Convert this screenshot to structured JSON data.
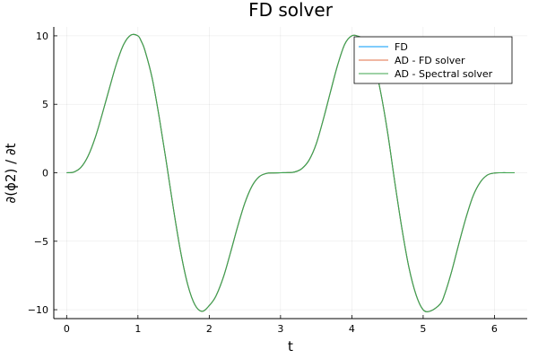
{
  "chart_data": {
    "type": "line",
    "title": "FD solver",
    "xlabel": "t",
    "ylabel": "∂(ϕ2) / ∂t",
    "xlim": [
      -0.18,
      6.46
    ],
    "ylim": [
      -10.65,
      10.65
    ],
    "xticks": [
      0,
      1,
      2,
      3,
      4,
      5,
      6
    ],
    "xtick_labels": [
      "0",
      "1",
      "2",
      "3",
      "4",
      "5",
      "6"
    ],
    "yticks": [
      -10,
      -5,
      0,
      5,
      10
    ],
    "ytick_labels": [
      "−10",
      "−5",
      "0",
      "5",
      "10"
    ],
    "grid": true,
    "legend_position": "top-right",
    "x": [
      0.0,
      0.1,
      0.2,
      0.3,
      0.4,
      0.5,
      0.6,
      0.7,
      0.8,
      0.9,
      1.0,
      1.047,
      1.1,
      1.2,
      1.3,
      1.4,
      1.5,
      1.6,
      1.7,
      1.8,
      1.9,
      2.0,
      2.094,
      2.2,
      2.3,
      2.4,
      2.5,
      2.6,
      2.7,
      2.8,
      2.9,
      3.0,
      3.1,
      3.2,
      3.3,
      3.4,
      3.5,
      3.6,
      3.7,
      3.8,
      3.9,
      4.0,
      4.1,
      4.189,
      4.3,
      4.4,
      4.5,
      4.6,
      4.7,
      4.8,
      4.9,
      5.0,
      5.1,
      5.236,
      5.3,
      5.4,
      5.5,
      5.6,
      5.7,
      5.8,
      5.9,
      6.0,
      6.1,
      6.2,
      6.283
    ],
    "series": [
      {
        "name": "FD",
        "color": "#009af9",
        "values": [
          0.0,
          0.05,
          0.39,
          1.21,
          2.55,
          4.3,
          6.17,
          7.98,
          9.37,
          10.05,
          10.0,
          9.6,
          8.9,
          6.9,
          4.0,
          0.72,
          -2.7,
          -5.8,
          -8.2,
          -9.65,
          -10.12,
          -9.7,
          -9.0,
          -7.6,
          -5.8,
          -3.9,
          -2.2,
          -0.97,
          -0.29,
          -0.05,
          -0.01,
          0.0,
          0.01,
          0.06,
          0.31,
          0.92,
          2.1,
          3.9,
          5.9,
          7.85,
          9.38,
          10.0,
          9.95,
          9.6,
          8.3,
          6.0,
          3.0,
          -0.6,
          -4.0,
          -6.9,
          -8.9,
          -10.0,
          -10.1,
          -9.6,
          -8.9,
          -7.2,
          -5.2,
          -3.3,
          -1.7,
          -0.7,
          -0.17,
          -0.02,
          0.0,
          0.0,
          0.0
        ]
      },
      {
        "name": "AD - FD solver",
        "color": "#e26f46",
        "values": [
          0.0,
          0.05,
          0.39,
          1.21,
          2.55,
          4.3,
          6.17,
          7.98,
          9.37,
          10.05,
          10.0,
          9.6,
          8.9,
          6.9,
          4.0,
          0.72,
          -2.7,
          -5.8,
          -8.2,
          -9.65,
          -10.12,
          -9.7,
          -9.0,
          -7.6,
          -5.8,
          -3.9,
          -2.2,
          -0.97,
          -0.29,
          -0.05,
          -0.01,
          0.0,
          0.01,
          0.06,
          0.31,
          0.92,
          2.1,
          3.9,
          5.9,
          7.85,
          9.38,
          10.0,
          9.95,
          9.6,
          8.3,
          6.0,
          3.0,
          -0.6,
          -4.0,
          -6.9,
          -8.9,
          -10.0,
          -10.1,
          -9.6,
          -8.9,
          -7.2,
          -5.2,
          -3.3,
          -1.7,
          -0.7,
          -0.17,
          -0.02,
          0.0,
          0.0,
          0.0
        ]
      },
      {
        "name": "AD - Spectral solver",
        "color": "#3da44d",
        "values": [
          0.0,
          0.05,
          0.39,
          1.21,
          2.55,
          4.3,
          6.17,
          7.98,
          9.37,
          10.05,
          10.0,
          9.6,
          8.9,
          6.9,
          4.0,
          0.72,
          -2.7,
          -5.8,
          -8.2,
          -9.65,
          -10.12,
          -9.7,
          -9.0,
          -7.6,
          -5.8,
          -3.9,
          -2.2,
          -0.97,
          -0.29,
          -0.05,
          -0.01,
          0.0,
          0.01,
          0.06,
          0.31,
          0.92,
          2.1,
          3.9,
          5.9,
          7.85,
          9.38,
          10.0,
          9.95,
          9.6,
          8.3,
          6.0,
          3.0,
          -0.6,
          -4.0,
          -6.9,
          -8.9,
          -10.0,
          -10.1,
          -9.6,
          -8.9,
          -7.2,
          -5.2,
          -3.3,
          -1.7,
          -0.7,
          -0.17,
          -0.02,
          0.0,
          0.0,
          0.0
        ]
      }
    ]
  }
}
